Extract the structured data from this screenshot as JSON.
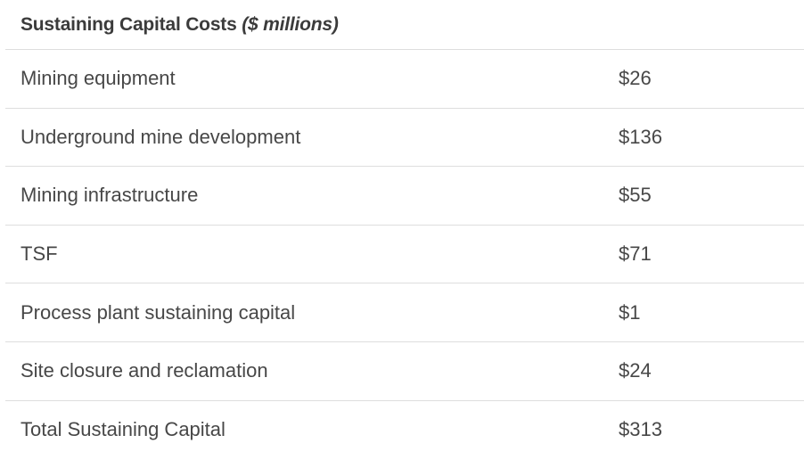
{
  "table": {
    "title": "Sustaining Capital Costs",
    "title_unit": "($ millions)",
    "rows": [
      {
        "label": "Mining equipment",
        "value": "$26"
      },
      {
        "label": "Underground mine development",
        "value": "$136"
      },
      {
        "label": "Mining infrastructure",
        "value": "$55"
      },
      {
        "label": "TSF",
        "value": "$71"
      },
      {
        "label": "Process plant sustaining capital",
        "value": "$1"
      },
      {
        "label": "Site closure and reclamation",
        "value": "$24"
      },
      {
        "label": "Total Sustaining Capital",
        "value": "$313"
      }
    ]
  }
}
